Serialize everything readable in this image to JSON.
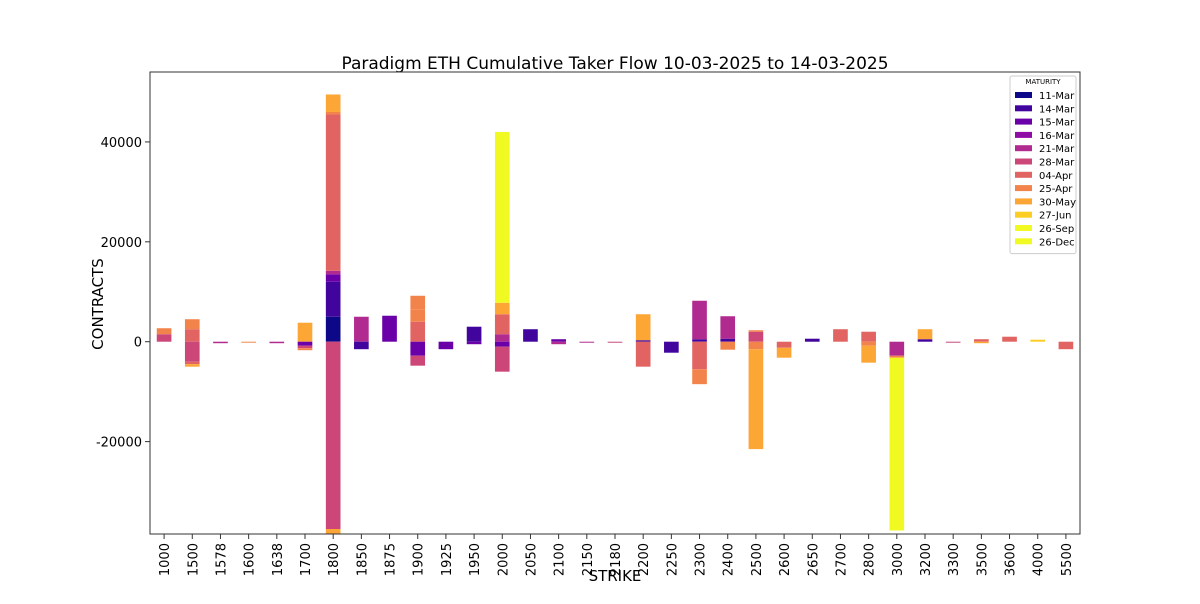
{
  "chart_data": {
    "type": "bar",
    "stacked": true,
    "title": "Paradigm ETH Cumulative Taker Flow 10-03-2025 to 14-03-2025",
    "xlabel": "STRIKE",
    "ylabel": "CONTRACTS",
    "ylim": [
      -38500,
      54000
    ],
    "yticks": [
      -20000,
      0,
      20000,
      40000
    ],
    "grid": false,
    "legend": {
      "title": "MATURITY",
      "placement": "top-right",
      "items": [
        {
          "name": "11-Mar",
          "color": "#0d0887"
        },
        {
          "name": "14-Mar",
          "color": "#41049d"
        },
        {
          "name": "15-Mar",
          "color": "#6a00a8"
        },
        {
          "name": "16-Mar",
          "color": "#8f0da4"
        },
        {
          "name": "21-Mar",
          "color": "#b12a90"
        },
        {
          "name": "28-Mar",
          "color": "#cc4778"
        },
        {
          "name": "04-Apr",
          "color": "#e16462"
        },
        {
          "name": "25-Apr",
          "color": "#f2844b"
        },
        {
          "name": "30-May",
          "color": "#fca636"
        },
        {
          "name": "27-Jun",
          "color": "#fcce25"
        },
        {
          "name": "26-Sep",
          "color": "#f0f921"
        },
        {
          "name": "26-Dec",
          "color": "#f0f921"
        }
      ]
    },
    "categories": [
      "1000",
      "1500",
      "1578",
      "1600",
      "1638",
      "1700",
      "1800",
      "1850",
      "1875",
      "1900",
      "1925",
      "1950",
      "2000",
      "2050",
      "2100",
      "2150",
      "2180",
      "2200",
      "2250",
      "2300",
      "2400",
      "2500",
      "2600",
      "2650",
      "2700",
      "2800",
      "3000",
      "3200",
      "3300",
      "3500",
      "3600",
      "4000",
      "5500"
    ],
    "bars": [
      {
        "strike": "1000",
        "segments": [
          {
            "from": 0,
            "to": 1500,
            "color": "#cc4778"
          },
          {
            "from": 1500,
            "to": 2700,
            "color": "#f2844b"
          }
        ]
      },
      {
        "strike": "1500",
        "segments": [
          {
            "from": 0,
            "to": 2500,
            "color": "#e16462"
          },
          {
            "from": 2500,
            "to": 4500,
            "color": "#f2844b"
          },
          {
            "from": 0,
            "to": -4000,
            "color": "#cc4778"
          },
          {
            "from": -4000,
            "to": -4500,
            "color": "#e16462"
          },
          {
            "from": -4500,
            "to": -5000,
            "color": "#fca636"
          }
        ]
      },
      {
        "strike": "1578",
        "segments": [
          {
            "from": 0,
            "to": -300,
            "color": "#b12a90"
          }
        ]
      },
      {
        "strike": "1600",
        "segments": [
          {
            "from": 0,
            "to": -200,
            "color": "#f2844b"
          }
        ]
      },
      {
        "strike": "1638",
        "segments": [
          {
            "from": 0,
            "to": -300,
            "color": "#b12a90"
          }
        ]
      },
      {
        "strike": "1700",
        "segments": [
          {
            "from": 0,
            "to": 3800,
            "color": "#fca636"
          },
          {
            "from": 0,
            "to": -800,
            "color": "#6a00a8"
          },
          {
            "from": -800,
            "to": -1300,
            "color": "#cc4778"
          },
          {
            "from": -1300,
            "to": -1700,
            "color": "#f2844b"
          }
        ]
      },
      {
        "strike": "1800",
        "segments": [
          {
            "from": 0,
            "to": 5000,
            "color": "#0d0887"
          },
          {
            "from": 5000,
            "to": 12000,
            "color": "#41049d"
          },
          {
            "from": 12000,
            "to": 13500,
            "color": "#6a00a8"
          },
          {
            "from": 13500,
            "to": 14200,
            "color": "#b12a90"
          },
          {
            "from": 14200,
            "to": 45500,
            "color": "#e16462"
          },
          {
            "from": 45500,
            "to": 46000,
            "color": "#f2844b"
          },
          {
            "from": 46000,
            "to": 49500,
            "color": "#fca636"
          },
          {
            "from": 0,
            "to": -37500,
            "color": "#cc4778"
          },
          {
            "from": -37500,
            "to": -38500,
            "color": "#fca636"
          }
        ]
      },
      {
        "strike": "1850",
        "segments": [
          {
            "from": 0,
            "to": 5000,
            "color": "#b12a90"
          },
          {
            "from": 0,
            "to": -1500,
            "color": "#41049d"
          }
        ]
      },
      {
        "strike": "1875",
        "segments": [
          {
            "from": 0,
            "to": 5200,
            "color": "#6a00a8"
          }
        ]
      },
      {
        "strike": "1900",
        "segments": [
          {
            "from": 0,
            "to": 4000,
            "color": "#e16462"
          },
          {
            "from": 4000,
            "to": 6500,
            "color": "#f2844b"
          },
          {
            "from": 6500,
            "to": 9200,
            "color": "#f2844b"
          },
          {
            "from": 0,
            "to": -2800,
            "color": "#6a00a8"
          },
          {
            "from": -2800,
            "to": -4800,
            "color": "#cc4778"
          }
        ]
      },
      {
        "strike": "1925",
        "segments": [
          {
            "from": 0,
            "to": -1500,
            "color": "#6a00a8"
          }
        ]
      },
      {
        "strike": "1950",
        "segments": [
          {
            "from": 0,
            "to": 3000,
            "color": "#41049d"
          },
          {
            "from": 0,
            "to": -500,
            "color": "#6a00a8"
          }
        ]
      },
      {
        "strike": "2000",
        "segments": [
          {
            "from": 0,
            "to": 1500,
            "color": "#b12a90"
          },
          {
            "from": 1500,
            "to": 5500,
            "color": "#e16462"
          },
          {
            "from": 5500,
            "to": 7800,
            "color": "#fca636"
          },
          {
            "from": 7800,
            "to": 42000,
            "color": "#f0f921"
          },
          {
            "from": 0,
            "to": -1000,
            "color": "#6a00a8"
          },
          {
            "from": -1000,
            "to": -6000,
            "color": "#cc4778"
          }
        ]
      },
      {
        "strike": "2050",
        "segments": [
          {
            "from": 0,
            "to": 2500,
            "color": "#41049d"
          }
        ]
      },
      {
        "strike": "2100",
        "segments": [
          {
            "from": 0,
            "to": 500,
            "color": "#6a00a8"
          },
          {
            "from": 0,
            "to": -500,
            "color": "#b12a90"
          }
        ]
      },
      {
        "strike": "2150",
        "segments": [
          {
            "from": 0,
            "to": -200,
            "color": "#b12a90"
          }
        ]
      },
      {
        "strike": "2180",
        "segments": [
          {
            "from": 0,
            "to": -150,
            "color": "#cc4778"
          }
        ]
      },
      {
        "strike": "2200",
        "segments": [
          {
            "from": 0,
            "to": 300,
            "color": "#41049d"
          },
          {
            "from": 300,
            "to": 5500,
            "color": "#fca636"
          },
          {
            "from": 0,
            "to": -5000,
            "color": "#e16462"
          }
        ]
      },
      {
        "strike": "2250",
        "segments": [
          {
            "from": 0,
            "to": -2200,
            "color": "#41049d"
          }
        ]
      },
      {
        "strike": "2300",
        "segments": [
          {
            "from": 0,
            "to": 500,
            "color": "#41049d"
          },
          {
            "from": 500,
            "to": 8200,
            "color": "#b12a90"
          },
          {
            "from": 0,
            "to": -5500,
            "color": "#e16462"
          },
          {
            "from": -5500,
            "to": -8500,
            "color": "#f2844b"
          }
        ]
      },
      {
        "strike": "2400",
        "segments": [
          {
            "from": 0,
            "to": 600,
            "color": "#41049d"
          },
          {
            "from": 600,
            "to": 5100,
            "color": "#b12a90"
          },
          {
            "from": 0,
            "to": -1600,
            "color": "#f2844b"
          }
        ]
      },
      {
        "strike": "2500",
        "segments": [
          {
            "from": 0,
            "to": 2000,
            "color": "#cc4778"
          },
          {
            "from": 2000,
            "to": 2300,
            "color": "#f2844b"
          },
          {
            "from": 0,
            "to": -1500,
            "color": "#f2844b"
          },
          {
            "from": -1500,
            "to": -21500,
            "color": "#fca636"
          }
        ]
      },
      {
        "strike": "2600",
        "segments": [
          {
            "from": 0,
            "to": -1200,
            "color": "#e16462"
          },
          {
            "from": -1200,
            "to": -3200,
            "color": "#fca636"
          }
        ]
      },
      {
        "strike": "2650",
        "segments": [
          {
            "from": 0,
            "to": 600,
            "color": "#41049d"
          }
        ]
      },
      {
        "strike": "2700",
        "segments": [
          {
            "from": 0,
            "to": 2500,
            "color": "#e16462"
          }
        ]
      },
      {
        "strike": "2800",
        "segments": [
          {
            "from": 0,
            "to": 2000,
            "color": "#e16462"
          },
          {
            "from": 0,
            "to": -800,
            "color": "#f2844b"
          },
          {
            "from": -800,
            "to": -4200,
            "color": "#fca636"
          }
        ]
      },
      {
        "strike": "3000",
        "segments": [
          {
            "from": 0,
            "to": -2800,
            "color": "#b12a90"
          },
          {
            "from": -2800,
            "to": -3200,
            "color": "#f2844b"
          },
          {
            "from": -3200,
            "to": -37800,
            "color": "#f0f921"
          }
        ]
      },
      {
        "strike": "3200",
        "segments": [
          {
            "from": 0,
            "to": 500,
            "color": "#41049d"
          },
          {
            "from": 500,
            "to": 2500,
            "color": "#fca636"
          }
        ]
      },
      {
        "strike": "3300",
        "segments": [
          {
            "from": 0,
            "to": -150,
            "color": "#cc4778"
          }
        ]
      },
      {
        "strike": "3500",
        "segments": [
          {
            "from": 0,
            "to": 500,
            "color": "#e16462"
          },
          {
            "from": 0,
            "to": -300,
            "color": "#fca636"
          }
        ]
      },
      {
        "strike": "3600",
        "segments": [
          {
            "from": 0,
            "to": 1000,
            "color": "#e16462"
          }
        ]
      },
      {
        "strike": "4000",
        "segments": [
          {
            "from": 0,
            "to": 400,
            "color": "#fcce25"
          }
        ]
      },
      {
        "strike": "5500",
        "segments": [
          {
            "from": 0,
            "to": -1500,
            "color": "#e16462"
          }
        ]
      }
    ]
  }
}
